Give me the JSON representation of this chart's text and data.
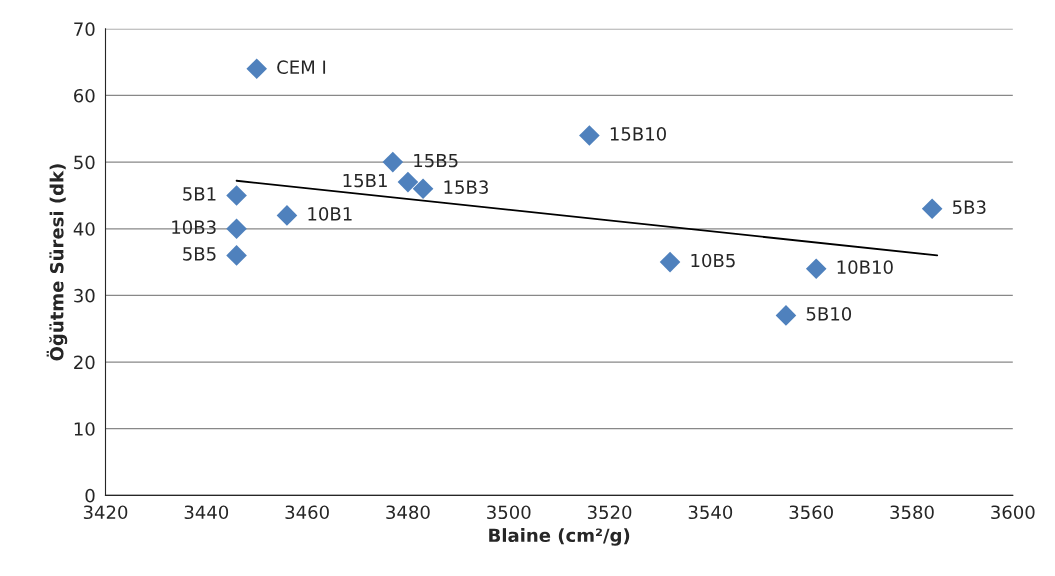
{
  "chart_data": {
    "type": "scatter",
    "xlabel": "Blaine (cm²/g)",
    "ylabel": "Öğütme Süresi (dk)",
    "series": [
      {
        "color": "#4f81bd",
        "marker": "diamond",
        "x": [
          3450,
          3446,
          3446,
          3446,
          3456,
          3477,
          3480,
          3483,
          3516,
          3532,
          3561,
          3555,
          3584
        ],
        "values": [
          64,
          45,
          40,
          36,
          42,
          50,
          47,
          46,
          54,
          35,
          34,
          27,
          43
        ]
      },
      {
        "type": "line",
        "color": "#000000",
        "x": [
          3446,
          3585
        ],
        "values": [
          47.2,
          36.0
        ]
      }
    ],
    "annotations": [
      {
        "text": "CEM I",
        "x": 3450,
        "y": 64
      },
      {
        "text": "5B1",
        "x": 3446,
        "y": 45
      },
      {
        "text": "10B3",
        "x": 3446,
        "y": 40
      },
      {
        "text": "5B5",
        "x": 3446,
        "y": 36
      },
      {
        "text": "10B1",
        "x": 3456,
        "y": 42
      },
      {
        "text": "15B5",
        "x": 3477,
        "y": 50
      },
      {
        "text": "15B1",
        "x": 3480,
        "y": 47
      },
      {
        "text": "15B3",
        "x": 3483,
        "y": 46
      },
      {
        "text": "15B10",
        "x": 3516,
        "y": 54
      },
      {
        "text": "10B5",
        "x": 3532,
        "y": 35
      },
      {
        "text": "10B10",
        "x": 3561,
        "y": 34
      },
      {
        "text": "5B10",
        "x": 3555,
        "y": 27
      },
      {
        "text": "5B3",
        "x": 3584,
        "y": 43
      }
    ],
    "xlim": [
      3420,
      3600
    ],
    "xticks": [
      3420,
      3440,
      3460,
      3480,
      3500,
      3520,
      3540,
      3560,
      3580,
      3600
    ],
    "ylim": [
      0,
      70
    ],
    "yticks": [
      0,
      10,
      20,
      30,
      40,
      50,
      60,
      70
    ],
    "grid": "y",
    "legend": false
  }
}
